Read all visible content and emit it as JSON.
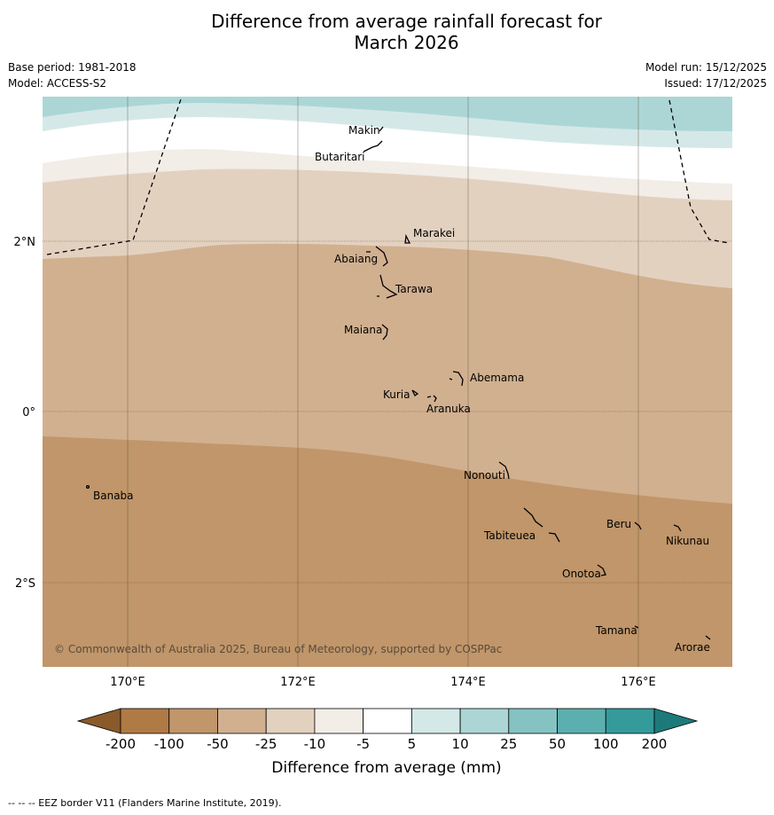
{
  "title_line1": "Difference from average rainfall forecast for",
  "title_line2": "March 2026",
  "base_period": "Base period: 1981-2018",
  "model": "Model: ACCESS-S2",
  "model_run": "Model run: 15/12/2025",
  "issued": "Issued: 17/12/2025",
  "copyright": "© Commonwealth of Australia 2025, Bureau of Meteorology, supported by COSPPac",
  "lon_labels": [
    "170°E",
    "172°E",
    "174°E",
    "176°E"
  ],
  "lat_labels": [
    "2°N",
    "0°",
    "2°S"
  ],
  "islands": [
    "Makin",
    "Butaritari",
    "Marakei",
    "Abaiang",
    "Tarawa",
    "Maiana",
    "Abemama",
    "Kuria",
    "Aranuka",
    "Nonouti",
    "Banaba",
    "Beru",
    "Nikunau",
    "Tabiteuea",
    "Onotoa",
    "Tamana",
    "Arorae"
  ],
  "colorbar": {
    "ticks": [
      "-200",
      "-100",
      "-50",
      "-25",
      "-10",
      "-5",
      "5",
      "10",
      "25",
      "50",
      "100",
      "200"
    ],
    "colors": [
      "#8a5a2a",
      "#b07a45",
      "#c0966a",
      "#d1b090",
      "#e3d1c0",
      "#f2ede7",
      "#ffffff",
      "#d5e8e8",
      "#acd6d6",
      "#85c3c3",
      "#5cafaf",
      "#349a9a",
      "#1d7a7a"
    ],
    "label": "Difference from average (mm)"
  },
  "footnote": "--  --  -- EEZ border V11 (Flanders Marine Institute, 2019)."
}
